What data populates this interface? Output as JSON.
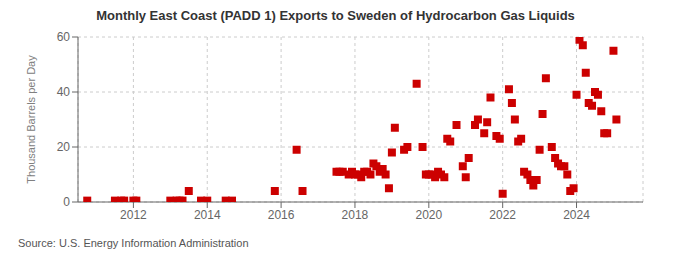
{
  "chart_data": {
    "type": "scatter",
    "title": "Monthly East Coast (PADD 1) Exports to Sweden of Hydrocarbon Gas Liquids",
    "ylabel": "Thousand Barrels per Day",
    "annotations": [
      "Source: U.S. Energy Information Administration"
    ],
    "color": "#cc0000",
    "marker": "square",
    "grid": true,
    "xlim": [
      2010.5,
      2025.8
    ],
    "xticks": [
      2012,
      2014,
      2016,
      2018,
      2020,
      2022,
      2024
    ],
    "ylim": [
      0,
      60
    ],
    "yticks": [
      0,
      20,
      40,
      60
    ],
    "x": [
      2010.75,
      2011.5,
      2011.67,
      2011.75,
      2012.0,
      2012.08,
      2013.0,
      2013.17,
      2013.25,
      2013.33,
      2013.83,
      2014.0,
      2013.5,
      2014.5,
      2014.67,
      2015.83,
      2016.42,
      2016.58,
      2017.5,
      2017.58,
      2017.67,
      2017.83,
      2017.92,
      2018.0,
      2018.08,
      2018.17,
      2018.25,
      2018.33,
      2018.42,
      2018.5,
      2018.58,
      2018.67,
      2018.75,
      2018.83,
      2018.92,
      2019.0,
      2019.08,
      2019.33,
      2019.42,
      2019.67,
      2019.83,
      2019.92,
      2020.0,
      2020.08,
      2020.17,
      2020.25,
      2020.33,
      2020.42,
      2020.5,
      2020.58,
      2020.75,
      2020.92,
      2021.0,
      2021.08,
      2021.25,
      2021.33,
      2021.5,
      2021.58,
      2021.67,
      2021.83,
      2021.92,
      2022.0,
      2022.17,
      2022.25,
      2022.33,
      2022.42,
      2022.5,
      2022.58,
      2022.67,
      2022.75,
      2022.83,
      2022.92,
      2023.0,
      2023.08,
      2023.17,
      2023.33,
      2023.42,
      2023.5,
      2023.58,
      2023.67,
      2023.75,
      2023.83,
      2023.92,
      2024.0,
      2024.08,
      2024.17,
      2024.25,
      2024.33,
      2024.42,
      2024.5,
      2024.58,
      2024.67,
      2024.75,
      2024.83,
      2025.0,
      2025.08
    ],
    "values": [
      0.5,
      0.5,
      0.5,
      0.5,
      0.5,
      0.5,
      0.5,
      0.5,
      0.5,
      0.5,
      0.5,
      0.5,
      4.0,
      0.5,
      0.5,
      4.0,
      19.0,
      4.0,
      11.0,
      11.0,
      11.0,
      10.0,
      11.0,
      10.0,
      10.0,
      9.0,
      11.0,
      11.0,
      10.0,
      14.0,
      13.0,
      11.0,
      12.0,
      10.0,
      5.0,
      18.0,
      27.0,
      19.0,
      20.0,
      43.0,
      20.0,
      10.0,
      10.0,
      10.0,
      9.0,
      11.0,
      10.0,
      9.0,
      23.0,
      22.0,
      28.0,
      13.0,
      9.0,
      16.0,
      28.0,
      30.0,
      25.0,
      29.0,
      38.0,
      24.0,
      23.0,
      3.0,
      41.0,
      36.0,
      30.0,
      22.0,
      23.0,
      11.0,
      10.0,
      8.0,
      6.0,
      8.0,
      19.0,
      32.0,
      45.0,
      20.0,
      16.0,
      14.0,
      13.0,
      13.0,
      10.0,
      4.0,
      5.0,
      39.0,
      59.0,
      57.0,
      47.0,
      36.0,
      35.0,
      40.0,
      39.0,
      33.0,
      25.0,
      25.0,
      55.0,
      30.0
    ]
  }
}
